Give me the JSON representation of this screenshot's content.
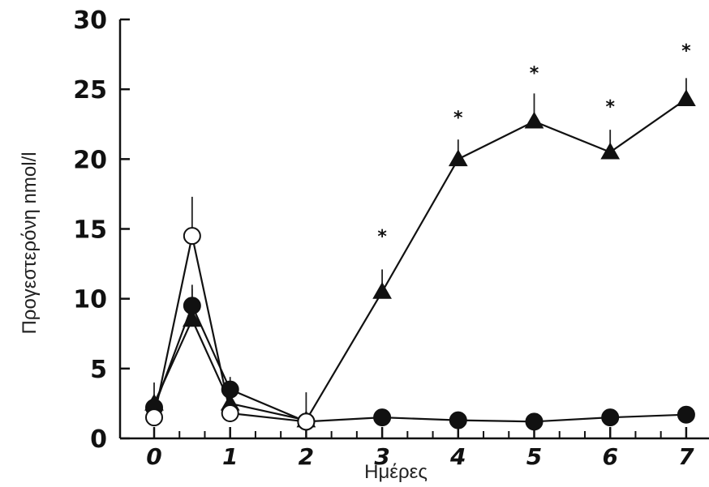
{
  "chart_data": {
    "type": "line",
    "title": "",
    "xlabel": "Ημέρες",
    "ylabel": "Προγεστερόνη nmol/l",
    "ylim": [
      0,
      30
    ],
    "xlim": [
      0,
      7
    ],
    "yticks": [
      "0",
      "5",
      "10",
      "15",
      "20",
      "25",
      "30"
    ],
    "xticks": [
      "0",
      "1",
      "2",
      "3",
      "4",
      "5",
      "6",
      "7"
    ],
    "xtick_values": [
      0,
      1,
      2,
      3,
      4,
      5,
      6,
      7
    ],
    "grid": false,
    "series": [
      {
        "marker": "open-circle",
        "x": [
          0,
          0.5,
          1,
          2
        ],
        "y": [
          1.5,
          14.5,
          1.8,
          1.2
        ],
        "err": [
          0.6,
          2.8,
          0.6,
          0.5
        ]
      },
      {
        "marker": "filled-circle",
        "x": [
          0,
          0.5,
          1,
          2,
          3,
          4,
          5,
          6,
          7
        ],
        "y": [
          2.2,
          9.5,
          3.5,
          1.2,
          1.5,
          1.3,
          1.2,
          1.5,
          1.7
        ],
        "err": [
          0.8,
          1.2,
          0.9,
          0.5,
          0.4,
          0.3,
          0.3,
          0.4,
          0.4
        ]
      },
      {
        "marker": "filled-triangle",
        "x": [
          0,
          0.5,
          1,
          2,
          3,
          4,
          5,
          6,
          7
        ],
        "y": [
          2.5,
          8.5,
          2.5,
          1.3,
          10.5,
          20,
          22.7,
          20.5,
          24.3
        ],
        "err": [
          1.5,
          2.5,
          1.5,
          2.0,
          1.6,
          1.4,
          2.0,
          1.6,
          1.5
        ]
      }
    ],
    "annotations": [
      {
        "x": 3,
        "y": 14.5,
        "text": "*"
      },
      {
        "x": 4,
        "y": 23.0,
        "text": "*"
      },
      {
        "x": 5,
        "y": 26.2,
        "text": "*"
      },
      {
        "x": 6,
        "y": 23.8,
        "text": "*"
      },
      {
        "x": 7,
        "y": 27.8,
        "text": "*"
      }
    ]
  }
}
